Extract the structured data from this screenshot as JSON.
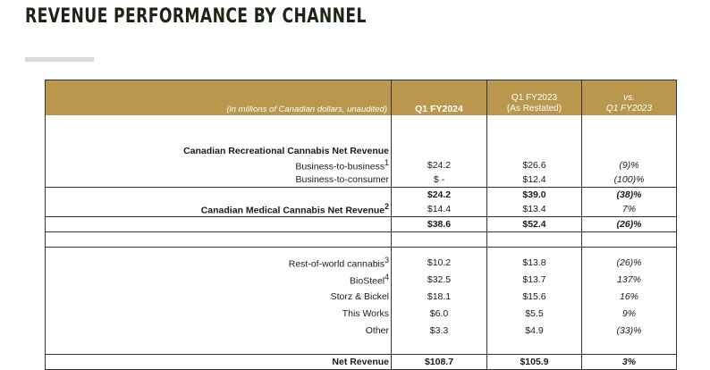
{
  "page": {
    "title": "REVENUE PERFORMANCE BY CHANNEL"
  },
  "table": {
    "header": {
      "label": "(in millions of Canadian dollars, unaudited)",
      "col1": "Q1 FY2024",
      "col2_line1": "Q1 FY2023",
      "col2_line2": "(As Restated)",
      "col3_line1": "vs.",
      "col3_line2": "Q1 FY2023"
    },
    "rec_section_label": "Canadian Recreational Cannabis Net Revenue",
    "rows": [
      {
        "label": "Business-to-business",
        "sup": "1",
        "q1": "$24.2",
        "q2": "$26.6",
        "chg": "(9)%"
      },
      {
        "label": "Business-to-consumer",
        "sup": "",
        "q1": "$ -",
        "q2": "$12.4",
        "chg": "(100)%"
      },
      {
        "label": "",
        "sup": "",
        "q1": "$24.2",
        "q2": "$39.0",
        "chg": "(38)%"
      },
      {
        "label": "Canadian Medical Cannabis Net Revenue",
        "sup": "2",
        "q1": "$14.4",
        "q2": "$13.4",
        "chg": "7%"
      },
      {
        "label": "",
        "sup": "",
        "q1": "$38.6",
        "q2": "$52.4",
        "chg": "(26)%"
      },
      {
        "label": "Rest-of-world cannabis",
        "sup": "3",
        "q1": "$10.2",
        "q2": "$13.8",
        "chg": "(26)%"
      },
      {
        "label": "BioSteel",
        "sup": "4",
        "q1": "$32.5",
        "q2": "$13.7",
        "chg": "137%"
      },
      {
        "label": "Storz & Bickel",
        "sup": "",
        "q1": "$18.1",
        "q2": "$15.6",
        "chg": "16%"
      },
      {
        "label": "This Works",
        "sup": "",
        "q1": "$6.0",
        "q2": "$5.5",
        "chg": "9%"
      },
      {
        "label": "Other",
        "sup": "",
        "q1": "$3.3",
        "q2": "$4.9",
        "chg": "(33)%"
      },
      {
        "label": "Net Revenue",
        "sup": "",
        "q1": "$108.7",
        "q2": "$105.9",
        "chg": "3%"
      }
    ]
  },
  "colors": {
    "header_bg": "#b9974c",
    "title": "#1c2618"
  }
}
